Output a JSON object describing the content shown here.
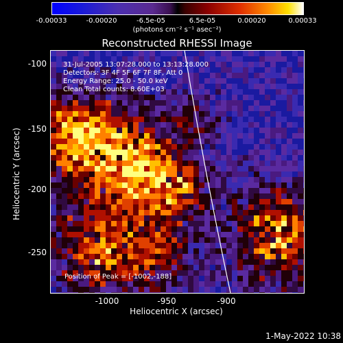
{
  "colorbar": {
    "ticks": [
      "-0.00033",
      "-0.00020",
      "-6.5e-05",
      "6.5e-05",
      "0.00020",
      "0.00033"
    ],
    "units": "(photons cm⁻² s⁻¹ asec⁻²)"
  },
  "title": "Reconstructed RHESSI Image",
  "annotations": {
    "time_range": "31-Jul-2005 13:07:28.000 to 13:13:28.000",
    "detectors": "Detectors: 3F 4F 5F 6F 7F 8F, Att 0",
    "energy": "Energy Range: 25.0 - 50.0 keV",
    "clean": "Clean    Total counts: 8.60E+03",
    "peak": "Position of Peak = [-1002,-188]"
  },
  "axes": {
    "xlabel": "Heliocentric X (arcsec)",
    "ylabel": "Heliocentric Y (arcsec)",
    "xticks": [
      "-1000",
      "-950",
      "-900"
    ],
    "yticks": [
      "-100",
      "-150",
      "-200",
      "-250"
    ]
  },
  "timestamp": "1-May-2022 10:38",
  "colors": {
    "background": "#000000",
    "frame": "#ffffff"
  }
}
